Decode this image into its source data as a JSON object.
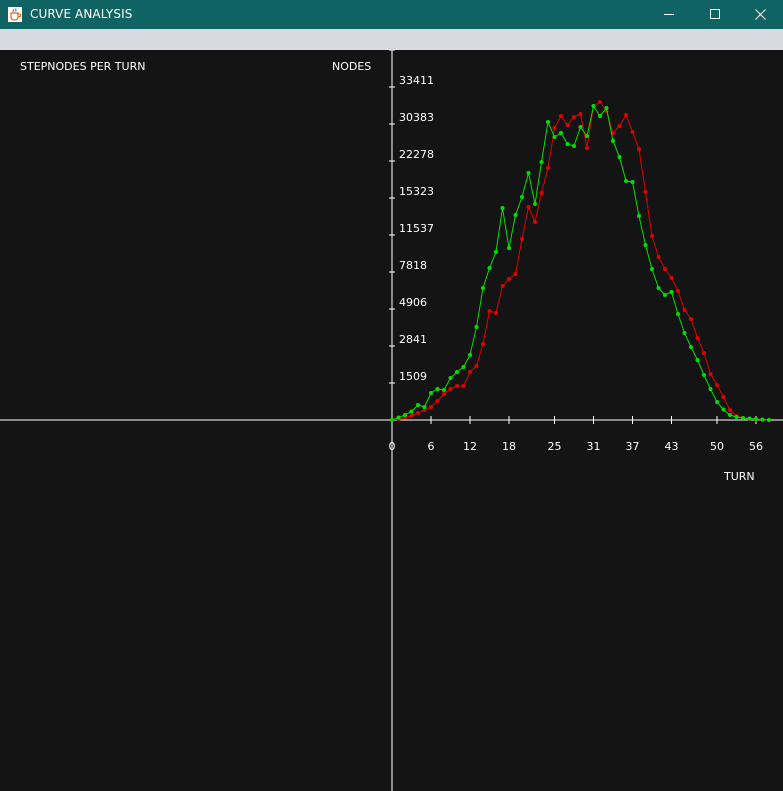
{
  "window": {
    "title": "CURVE ANALYSIS",
    "icon": "java-cup-icon",
    "controls": [
      "minimize-icon",
      "maximize-icon",
      "close-icon"
    ]
  },
  "colors": {
    "titlebar": "#0f6463",
    "background": "#141414",
    "axis": "#ffffff",
    "series_green": "#00e000",
    "series_red": "#e00000"
  },
  "chart_data": {
    "type": "line",
    "title": "STEPNODES PER TURN",
    "ylabel": "NODES",
    "xlabel": "TURN",
    "x_ticks": [
      0,
      6,
      12,
      18,
      25,
      31,
      37,
      43,
      50,
      56
    ],
    "y_ticks": [
      1509,
      2841,
      4906,
      7818,
      11537,
      15323,
      22278,
      30383,
      33411
    ],
    "xlim": [
      0,
      58
    ],
    "grid": false,
    "legend": "none",
    "x": [
      0,
      1,
      2,
      3,
      4,
      5,
      6,
      7,
      8,
      9,
      10,
      11,
      12,
      13,
      14,
      15,
      16,
      17,
      18,
      19,
      20,
      21,
      22,
      23,
      24,
      25,
      26,
      27,
      28,
      29,
      30,
      31,
      32,
      33,
      34,
      35,
      36,
      37,
      38,
      39,
      40,
      41,
      42,
      43,
      44,
      45,
      46,
      47,
      48,
      49,
      50,
      51,
      52,
      53,
      54,
      55,
      56,
      57,
      58
    ],
    "series": [
      {
        "color": "#00e000",
        "levels": [
          0,
          0.5,
          1.0,
          1.7,
          3.0,
          2.6,
          5.4,
          6.2,
          6.0,
          8.4,
          9.6,
          10.6,
          13.0,
          18.6,
          26.4,
          30.4,
          33.6,
          42.4,
          34.4,
          41.0,
          44.6,
          49.4,
          43.2,
          51.6,
          59.6,
          56.6,
          57.4,
          55.2,
          54.8,
          58.6,
          56.8,
          62.8,
          60.8,
          62.4,
          55.8,
          52.6,
          47.8,
          47.6,
          40.8,
          35.0,
          30.2,
          26.4,
          25.0,
          25.6,
          21.2,
          17.4,
          14.6,
          12.0,
          9.0,
          6.2,
          3.6,
          2.1,
          1.0,
          0.6,
          0.4,
          0.3,
          0.2,
          0.1,
          0.0
        ]
      },
      {
        "color": "#e00000",
        "levels": [
          0,
          0.2,
          0.5,
          0.9,
          1.4,
          2.0,
          2.6,
          3.8,
          5.2,
          6.2,
          6.8,
          6.8,
          9.6,
          10.8,
          15.2,
          21.8,
          21.4,
          26.8,
          28.2,
          29.2,
          36.2,
          42.6,
          39.6,
          45.4,
          50.4,
          58.4,
          60.8,
          59.0,
          60.6,
          61.2,
          54.4,
          62.8,
          63.6,
          61.8,
          57.4,
          58.8,
          61.0,
          57.6,
          54.2,
          45.6,
          36.8,
          32.6,
          30.2,
          28.4,
          25.8,
          22.0,
          20.2,
          16.4,
          13.4,
          9.2,
          7.0,
          4.6,
          2.0,
          0.8,
          0.4,
          0.2,
          0.1,
          0.05,
          0.0
        ]
      }
    ]
  }
}
